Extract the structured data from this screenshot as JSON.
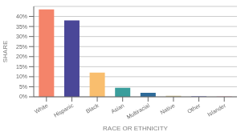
{
  "chart_data": {
    "type": "bar",
    "categories": [
      "White",
      "Hispanic",
      "Black",
      "Asian",
      "Multiracial",
      "Native",
      "Other",
      "Islander"
    ],
    "values": [
      43.5,
      38.0,
      12.0,
      4.5,
      2.0,
      0.5,
      0.3,
      0.2
    ],
    "colors": [
      "#F4846A",
      "#4A4798",
      "#F9BE6E",
      "#3A9E9C",
      "#2E6B9A",
      "#C8B98A",
      "#8888C8",
      "#E8A8B8"
    ],
    "xlabel": "RACE OR ETHNICITY",
    "ylabel": "SHARE",
    "ylim": [
      0,
      45
    ],
    "yticks": [
      {
        "value": 0,
        "label": "0%"
      },
      {
        "value": 5,
        "label": "5%"
      },
      {
        "value": 10,
        "label": "10%"
      },
      {
        "value": 15,
        "label": "15%"
      },
      {
        "value": 20,
        "label": "20%"
      },
      {
        "value": 25,
        "label": "25%"
      },
      {
        "value": 30,
        "label": "30%"
      },
      {
        "value": 35,
        "label": "35%"
      },
      {
        "value": 40,
        "label": "40%"
      }
    ],
    "grid": true
  }
}
